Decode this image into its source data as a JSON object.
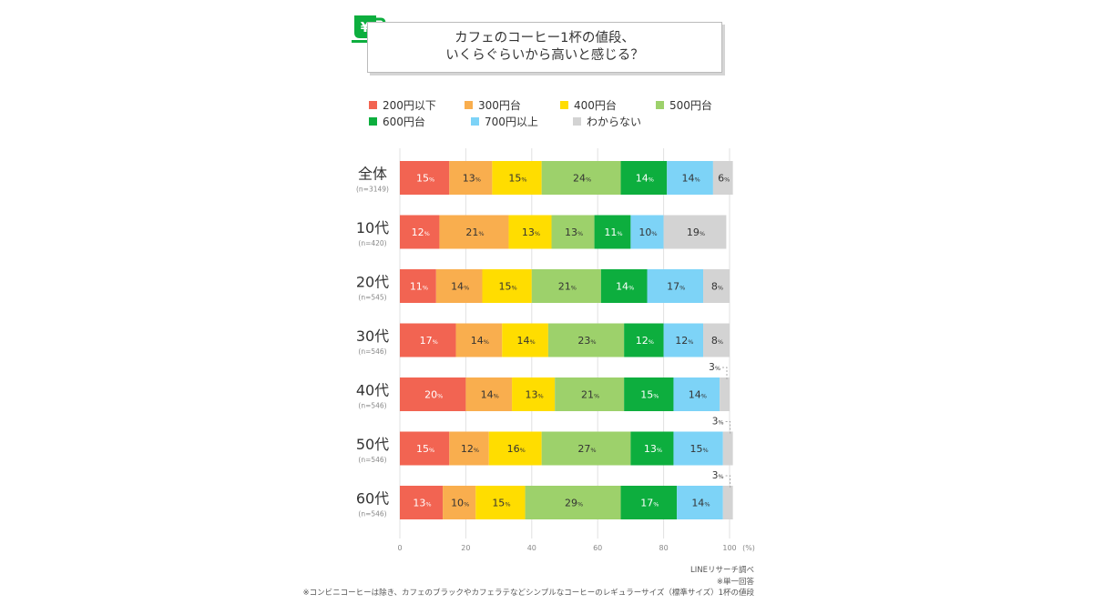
{
  "chart_data": {
    "type": "bar",
    "orientation": "horizontal",
    "stacked": true,
    "title_lines": [
      "カフェのコーヒー1杯の値段、",
      "いくらぐらいから高いと感じる？"
    ],
    "categories": [
      "全体",
      "10代",
      "20代",
      "30代",
      "40代",
      "50代",
      "60代"
    ],
    "sample_sizes": [
      "(n=3149)",
      "(n=420)",
      "(n=545)",
      "(n=546)",
      "(n=546)",
      "(n=546)",
      "(n=546)"
    ],
    "series": [
      {
        "name": "200円以下",
        "color": "#f26452",
        "text_color": "#ffffff",
        "values": [
          15,
          12,
          11,
          17,
          20,
          15,
          13
        ]
      },
      {
        "name": "300円台",
        "color": "#f9ae4e",
        "text_color": "#333333",
        "values": [
          13,
          21,
          14,
          14,
          14,
          12,
          10
        ]
      },
      {
        "name": "400円台",
        "color": "#ffdd00",
        "text_color": "#333333",
        "values": [
          15,
          13,
          15,
          14,
          13,
          16,
          15
        ]
      },
      {
        "name": "500円台",
        "color": "#9dd16b",
        "text_color": "#333333",
        "values": [
          24,
          13,
          21,
          23,
          21,
          27,
          29
        ]
      },
      {
        "name": "600円台",
        "color": "#0dae3e",
        "text_color": "#ffffff",
        "values": [
          14,
          11,
          14,
          12,
          15,
          13,
          17
        ]
      },
      {
        "name": "700円以上",
        "color": "#7dd3f7",
        "text_color": "#333333",
        "values": [
          14,
          10,
          17,
          12,
          14,
          15,
          14
        ]
      },
      {
        "name": "わからない",
        "color": "#d3d3d3",
        "text_color": "#333333",
        "values": [
          6,
          19,
          8,
          8,
          3,
          3,
          3
        ]
      }
    ],
    "xlim": [
      0,
      100
    ],
    "x_ticks": [
      "0",
      "20",
      "40",
      "60",
      "80",
      "100"
    ],
    "x_unit": "(%)",
    "value_suffix": "%",
    "legend_position": "top"
  },
  "footnotes": [
    "LINEリサーチ調べ",
    "※単一回答",
    "※コンビニコーヒーは除き、カフェのブラックやカフェラテなどシンプルなコーヒーのレギュラーサイズ（標準サイズ）1杯の値段"
  ],
  "icon": "yen-coffee-cup-icon",
  "accent_color": "#0dae3e"
}
